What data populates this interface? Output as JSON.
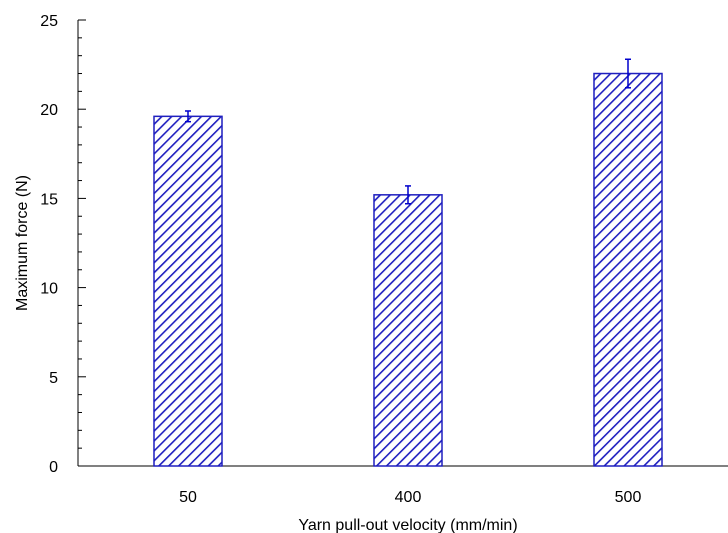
{
  "chart_data": {
    "type": "bar",
    "title": "",
    "xlabel": "Yarn pull-out velocity (mm/min)",
    "ylabel": "Maximum force (N)",
    "categories": [
      "50",
      "400",
      "500"
    ],
    "values": [
      19.6,
      15.2,
      22.0
    ],
    "error": [
      0.3,
      0.5,
      0.8
    ],
    "ylim": [
      0,
      25
    ],
    "yticks": [
      0,
      5,
      10,
      15,
      20,
      25
    ],
    "yminor_step": 1,
    "bar_style": "diagonal hatch",
    "bar_color": "#1f1fbf",
    "error_color": "#0000cc",
    "grid": false,
    "legend": "none"
  }
}
